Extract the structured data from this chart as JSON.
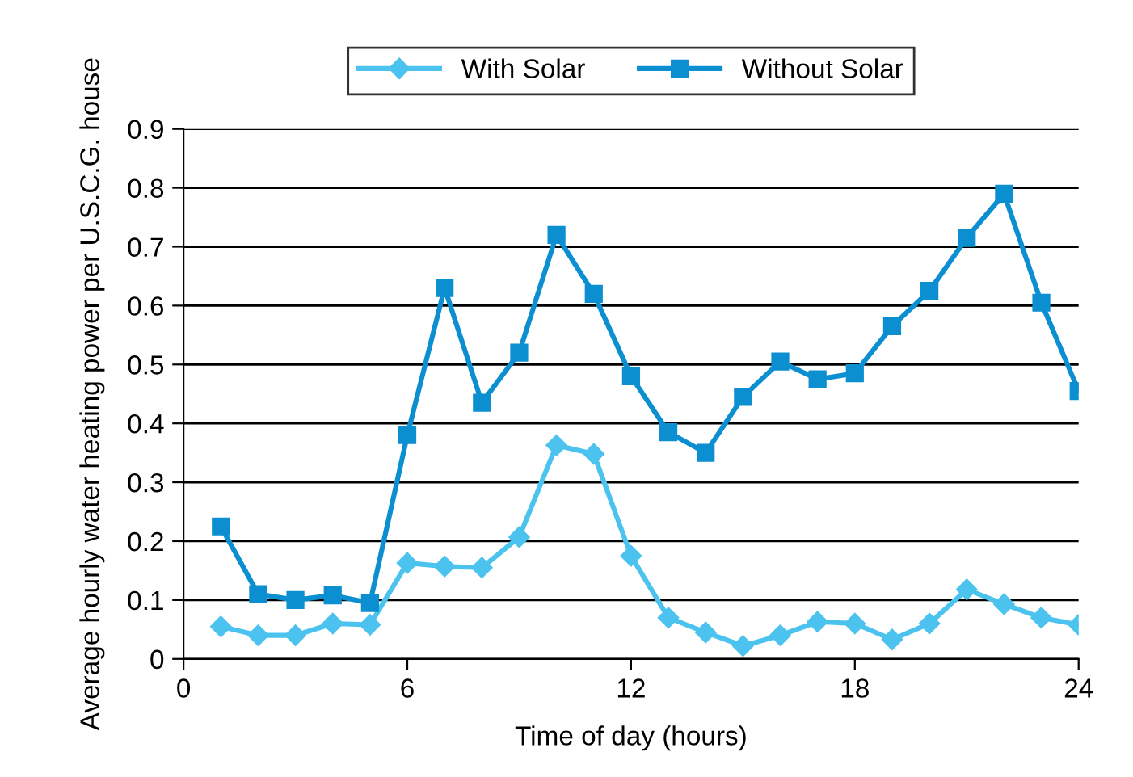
{
  "chart_data": {
    "type": "line",
    "xlabel": "Time of day (hours)",
    "ylabel": "Average hourly water heating power per U.S.C.G. house",
    "x": [
      1,
      2,
      3,
      4,
      5,
      6,
      7,
      8,
      9,
      10,
      11,
      12,
      13,
      14,
      15,
      16,
      17,
      18,
      19,
      20,
      21,
      22,
      23,
      24
    ],
    "series": [
      {
        "name": "With Solar",
        "color": "#4cc3ef",
        "marker": "diamond",
        "values": [
          0.055,
          0.04,
          0.04,
          0.06,
          0.058,
          0.163,
          0.157,
          0.155,
          0.207,
          0.363,
          0.348,
          0.175,
          0.07,
          0.045,
          0.022,
          0.04,
          0.063,
          0.06,
          0.033,
          0.06,
          0.118,
          0.093,
          0.07,
          0.058
        ]
      },
      {
        "name": "Without Solar",
        "color": "#0b8fd0",
        "marker": "square",
        "values": [
          0.225,
          0.11,
          0.1,
          0.108,
          0.095,
          0.38,
          0.63,
          0.435,
          0.52,
          0.72,
          0.62,
          0.48,
          0.385,
          0.35,
          0.445,
          0.505,
          0.475,
          0.485,
          0.565,
          0.625,
          0.715,
          0.79,
          0.605,
          0.455
        ]
      }
    ],
    "xlim": [
      0,
      24
    ],
    "xticks": [
      0,
      6,
      12,
      18,
      24
    ],
    "ylim": [
      0,
      0.9
    ],
    "yticks": [
      {
        "value": 0,
        "label": "0"
      },
      0.1,
      0.2,
      0.3,
      0.4,
      0.5,
      0.6,
      0.7,
      0.8,
      0.9
    ],
    "grid": "y",
    "legend": "top",
    "line_style": "solid"
  }
}
